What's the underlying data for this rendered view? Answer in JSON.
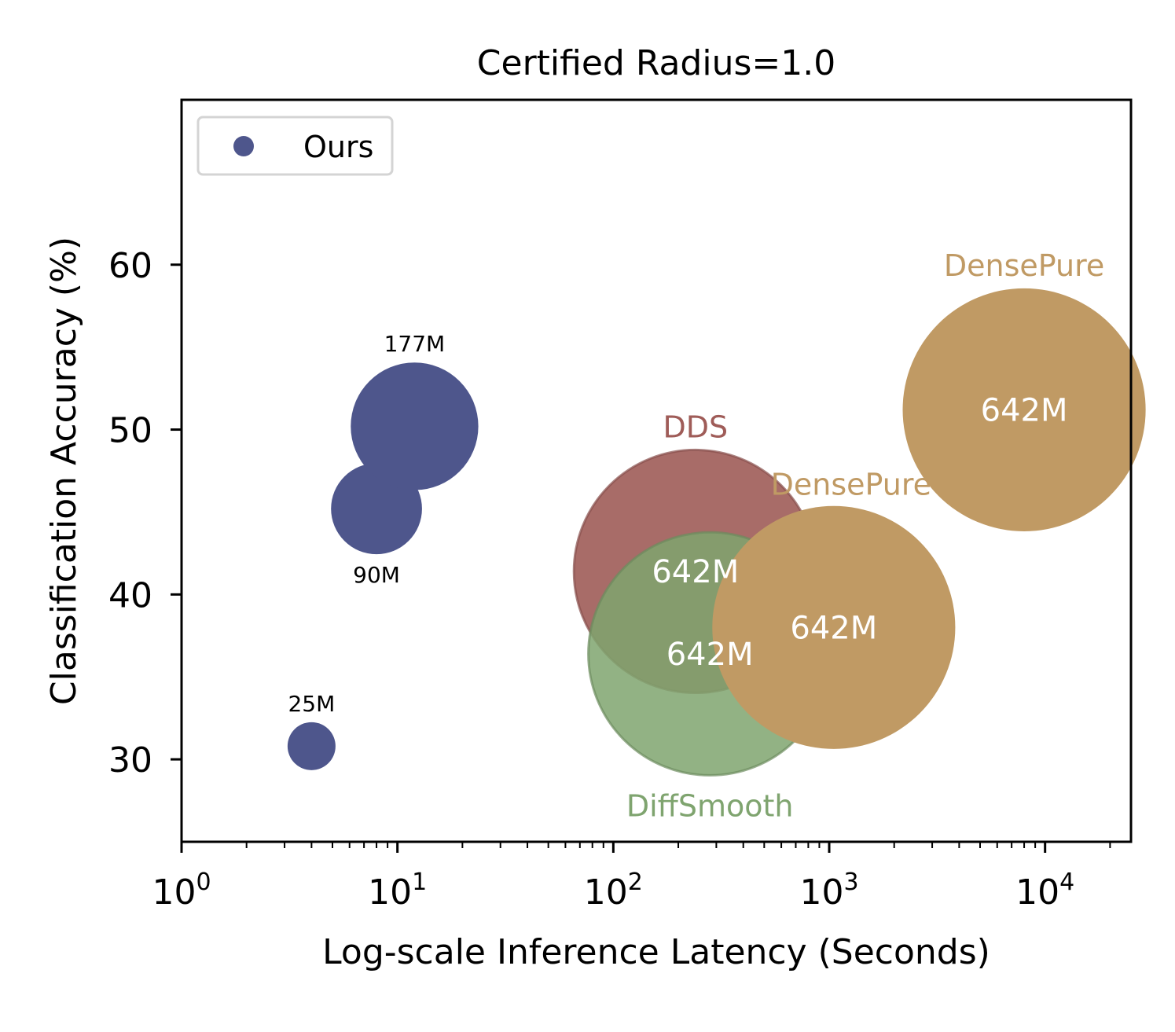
{
  "chart_data": {
    "type": "scatter",
    "title": "Certified Radius=1.0",
    "xlabel": "Log-scale Inference Latency (Seconds)",
    "ylabel": "Classification Accuracy (%)",
    "xscale": "log",
    "xlim": [
      1,
      25000
    ],
    "ylim": [
      25,
      70
    ],
    "x_ticks": [
      {
        "value": 1,
        "base": "10",
        "exp": "0"
      },
      {
        "value": 10,
        "base": "10",
        "exp": "1"
      },
      {
        "value": 100,
        "base": "10",
        "exp": "2"
      },
      {
        "value": 1000,
        "base": "10",
        "exp": "3"
      },
      {
        "value": 10000,
        "base": "10",
        "exp": "4"
      }
    ],
    "y_ticks": [
      {
        "value": 30,
        "label": "30"
      },
      {
        "value": 40,
        "label": "40"
      },
      {
        "value": 50,
        "label": "50"
      },
      {
        "value": 60,
        "label": "60"
      }
    ],
    "grid": false,
    "legend": {
      "position": "top-left",
      "entries": [
        {
          "label": "Ours",
          "color": "#4e568c"
        }
      ]
    },
    "colors": {
      "ours": "#4e568c",
      "dds": "#9f5c58",
      "diffsmooth": "#7fa46f",
      "densepure": "#c09a64"
    },
    "points": [
      {
        "series": "Ours",
        "x": 4,
        "y": 30.8,
        "params": 25,
        "label": "25M",
        "label_pos": "above",
        "color": "#4e568c",
        "alpha": 1
      },
      {
        "series": "Ours",
        "x": 8,
        "y": 45.2,
        "params": 90,
        "label": "90M",
        "label_pos": "below",
        "color": "#4e568c",
        "alpha": 1
      },
      {
        "series": "Ours",
        "x": 12,
        "y": 50.2,
        "params": 177,
        "label": "177M",
        "label_pos": "above",
        "color": "#4e568c",
        "alpha": 1
      },
      {
        "series": "DDS",
        "x": 240,
        "y": 41.4,
        "params": 642,
        "label": "642M",
        "label_pos": "center",
        "name_label": "DDS",
        "name_pos": "above",
        "color": "#9f5c58",
        "alpha": 0.9
      },
      {
        "series": "DiffSmooth",
        "x": 280,
        "y": 36.4,
        "params": 642,
        "label": "642M",
        "label_pos": "center",
        "name_label": "DiffSmooth",
        "name_pos": "below",
        "color": "#7fa46f",
        "alpha": 0.85
      },
      {
        "series": "DensePure",
        "x": 1050,
        "y": 38.0,
        "params": 642,
        "label": "642M",
        "label_pos": "center",
        "name_label": "DensePure",
        "name_pos": "above-right",
        "color": "#c09a64",
        "alpha": 1
      },
      {
        "series": "DensePure",
        "x": 8000,
        "y": 51.2,
        "params": 642,
        "label": "642M",
        "label_pos": "center",
        "name_label": "DensePure",
        "name_pos": "above",
        "color": "#c09a64",
        "alpha": 1
      }
    ]
  }
}
